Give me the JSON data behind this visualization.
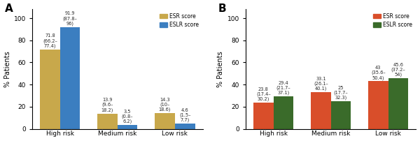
{
  "A": {
    "title": "A",
    "categories": [
      "High risk",
      "Medium risk",
      "Low risk"
    ],
    "esr_values": [
      71.8,
      13.9,
      14.3
    ],
    "eslr_values": [
      91.9,
      3.5,
      4.6
    ],
    "esr_annotations": [
      "71.8\n(66.2–\n77.4)",
      "13.9\n(9.6–\n18.2)",
      "14.3\n(10–\n18.6)"
    ],
    "eslr_annotations": [
      "91.9\n(87.8–\n96)",
      "3.5\n(0.8–\n6.2)",
      "4.6\n(1.5–\n7.7)"
    ],
    "esr_color": "#C8A84B",
    "eslr_color": "#3B7EC0",
    "ylim": [
      0,
      108
    ],
    "yticks": [
      0,
      20,
      40,
      60,
      80,
      100
    ],
    "ylabel": "% Patients",
    "legend_labels": [
      "ESR score",
      "ESLR score"
    ]
  },
  "B": {
    "title": "B",
    "categories": [
      "High risk",
      "Medium risk",
      "Low risk"
    ],
    "esr_values": [
      23.8,
      33.1,
      43.0
    ],
    "eslr_values": [
      29.4,
      25.0,
      45.6
    ],
    "esr_annotations": [
      "23.8\n(17.4–\n30.2)",
      "33.1\n(26.1–\n40.1)",
      "43\n(35.6–\n50.4)"
    ],
    "eslr_annotations": [
      "29.4\n(21.7–\n37.1)",
      "25\n(17.7–\n32.3)",
      "45.6\n(37.2–\n54)"
    ],
    "esr_color": "#D94E2A",
    "eslr_color": "#3A6B2A",
    "ylim": [
      0,
      108
    ],
    "yticks": [
      0,
      20,
      40,
      60,
      80,
      100
    ],
    "ylabel": "% Patients",
    "legend_labels": [
      "ESR score",
      "ESLR score"
    ]
  }
}
